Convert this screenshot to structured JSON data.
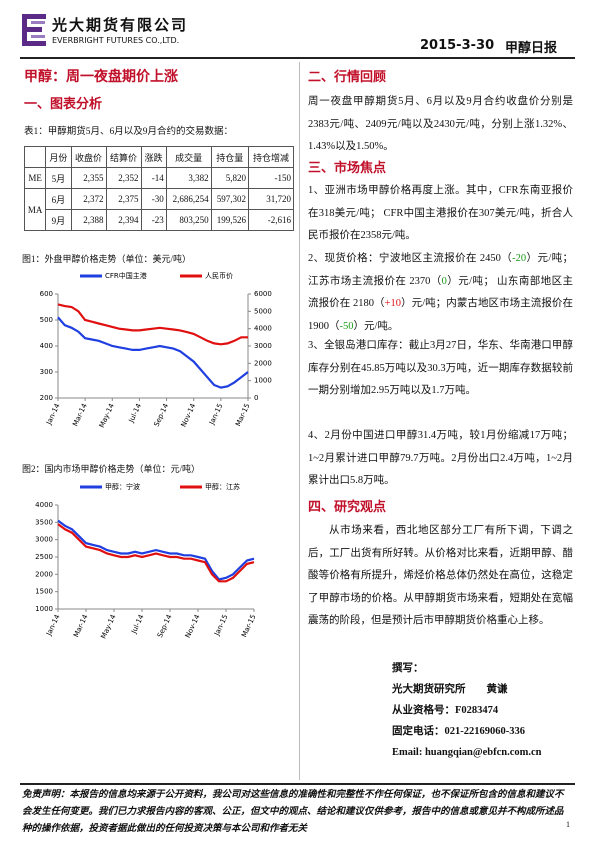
{
  "header": {
    "company": "光大期货有限公司",
    "company_en": "EVERBRIGHT FUTURES CO.,LTD.",
    "date": "2015-3-30",
    "report": "甲醇日报"
  },
  "title": "甲醇：周一夜盘期价上涨",
  "section1": "一、图表分析",
  "table": {
    "caption": "表1：甲醇期货5月、6月以及9月合约的交易数据：",
    "columns": [
      "月份",
      "收盘价",
      "结算价",
      "涨跌",
      "成交量",
      "持仓量",
      "持仓增减"
    ],
    "groups": [
      "ME",
      "MA"
    ],
    "rows": [
      [
        "5月",
        "2,355",
        "2,352",
        "-14",
        "3,382",
        "5,820",
        "-150"
      ],
      [
        "6月",
        "2,372",
        "2,375",
        "-30",
        "2,686,254",
        "597,302",
        "31,720"
      ],
      [
        "9月",
        "2,388",
        "2,394",
        "-23",
        "803,250",
        "199,526",
        "-2,616"
      ]
    ]
  },
  "chart_data": [
    {
      "type": "line",
      "title": "图1：外盘甲醇价格走势（单位：美元/吨）",
      "categories": [
        "Jan-14",
        null,
        null,
        null,
        "Mar-14",
        null,
        null,
        null,
        "May-14",
        null,
        null,
        null,
        "Jul-14",
        null,
        null,
        null,
        "Sep-14",
        null,
        null,
        null,
        "Nov-14",
        null,
        null,
        null,
        "Jan-15",
        null,
        null,
        null,
        "Mar-15"
      ],
      "series": [
        {
          "name": "CFR中国主港",
          "color": "#1f3fe0",
          "values": [
            510,
            480,
            470,
            455,
            430,
            425,
            420,
            410,
            400,
            395,
            390,
            385,
            385,
            390,
            395,
            400,
            395,
            390,
            380,
            360,
            340,
            310,
            280,
            250,
            240,
            245,
            260,
            280,
            300
          ]
        },
        {
          "name": "人民币价",
          "color": "#e01010",
          "axis": "y2",
          "values": [
            5400,
            5300,
            5250,
            5000,
            4500,
            4400,
            4300,
            4200,
            4100,
            4000,
            3950,
            3900,
            3900,
            3950,
            4000,
            4050,
            4000,
            3950,
            3900,
            3800,
            3700,
            3500,
            3300,
            3150,
            3100,
            3150,
            3300,
            3500,
            3500
          ]
        }
      ],
      "ylim": [
        200,
        600
      ],
      "yticks": [
        200,
        300,
        400,
        500,
        600
      ],
      "y2lim": [
        0,
        6000
      ],
      "y2ticks": [
        0,
        1000,
        2000,
        3000,
        4000,
        5000,
        6000
      ]
    },
    {
      "type": "line",
      "title": "图2：国内市场甲醇价格走势（单位：元/吨）",
      "categories": [
        "Jan-14",
        null,
        null,
        null,
        "Mar-14",
        null,
        null,
        null,
        "May-14",
        null,
        null,
        null,
        "Jul-14",
        null,
        null,
        null,
        "Sep-14",
        null,
        null,
        null,
        "Nov-14",
        null,
        null,
        null,
        "Jan-15",
        null,
        null,
        null,
        "Mar-15"
      ],
      "series": [
        {
          "name": "甲醇：宁波",
          "color": "#1f3fe0",
          "values": [
            3550,
            3400,
            3300,
            3100,
            2900,
            2850,
            2800,
            2700,
            2650,
            2600,
            2600,
            2650,
            2600,
            2650,
            2700,
            2650,
            2600,
            2600,
            2550,
            2550,
            2500,
            2450,
            2100,
            1850,
            1900,
            2000,
            2200,
            2400,
            2450
          ]
        },
        {
          "name": "甲醇：江苏",
          "color": "#e01010",
          "values": [
            3450,
            3300,
            3200,
            3000,
            2800,
            2750,
            2700,
            2600,
            2550,
            2500,
            2500,
            2550,
            2500,
            2550,
            2600,
            2550,
            2500,
            2500,
            2450,
            2450,
            2400,
            2350,
            2000,
            1800,
            1800,
            1900,
            2100,
            2300,
            2350
          ]
        }
      ],
      "ylim": [
        1000,
        4000
      ],
      "yticks": [
        1000,
        1500,
        2000,
        2500,
        3000,
        3500,
        4000
      ]
    }
  ],
  "section2": "二、行情回顾",
  "review": "周一夜盘甲醇期货5月、6月以及9月合约收盘价分别是2383元/吨、2409元/吨以及2430元/吨，分别上涨1.32%、1.43%以及1.50%。",
  "section3": "三、市场焦点",
  "focus": [
    "1、亚洲市场甲醇价格再度上涨。其中，CFR东南亚报价在318美元/吨； CFR中国主港报价在307美元/吨，折合人民币报价在2358元/吨。",
    [
      "2、现货价格：宁波地区主流报价在 2450（",
      "-20",
      "）元/吨；江苏市场主流报价在 2370（",
      "0",
      "）元/吨； 山东南部地区主流报价在 2180（",
      "+10",
      "）元/吨；内蒙古地区市场主流报价在 1900（",
      "-50",
      "）元/吨。"
    ],
    "3、全银岛港口库存：截止3月27日，华东、华南港口甲醇库存分别在45.85万吨以及30.3万吨，近一期库存数据较前一期分别增加2.95万吨以及1.7万吨。",
    "4、2月份中国进口甲醇31.4万吨，较1月份缩减17万吨；1~2月累计进口甲醇79.7万吨。2月份出口2.4万吨，1~2月累计出口5.8万吨。"
  ],
  "section4": "四、研究观点",
  "view": "从市场来看，西北地区部分工厂有所下调，下调之后，工厂出货有所好转。从价格对比来看，近期甲醇、醋酸等价格有所提升，烯烃价格总体仍然处在高位，这稳定了甲醇市场的价格。从甲醇期货市场来看，短期处在宽幅震荡的阶段，但是预计后市甲醇期货价格重心上移。",
  "author": [
    "撰写：",
    "光大期货研究所　　黄谦",
    "从业资格号：F0283474",
    "固定电话：021-22169060-336",
    "Email: huangqian@ebfcn.com.cn"
  ],
  "disclaimer": "免责声明：本报告的信息均来源于公开资料，我公司对这些信息的准确性和完整性不作任何保证，也不保证所包含的信息和建议不会发生任何变更。我们已力求报告内容的客观、公正，但文中的观点、结论和建议仅供参考，报告中的信息或意见并不构成所述品种的操作依据，投资者据此做出的任何投资决策与本公司和作者无关",
  "page": "1"
}
